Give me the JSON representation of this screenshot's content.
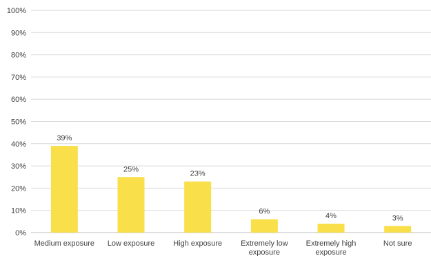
{
  "chart_data": {
    "type": "bar",
    "categories": [
      [
        "Medium exposure"
      ],
      [
        "Low exposure"
      ],
      [
        "High exposure"
      ],
      [
        "Extremely low",
        "exposure"
      ],
      [
        "Extremely high",
        "exposure"
      ],
      [
        "Not sure"
      ]
    ],
    "values": [
      39,
      25,
      23,
      6,
      4,
      3
    ],
    "data_labels": [
      "39%",
      "25%",
      "23%",
      "6%",
      "4%",
      "3%"
    ],
    "y_ticks": [
      "0%",
      "10%",
      "20%",
      "30%",
      "40%",
      "50%",
      "60%",
      "70%",
      "80%",
      "90%",
      "100%"
    ],
    "ylim": [
      0,
      100
    ],
    "grid": true,
    "bar_color": "#f9df4a",
    "title": "",
    "xlabel": "",
    "ylabel": ""
  }
}
